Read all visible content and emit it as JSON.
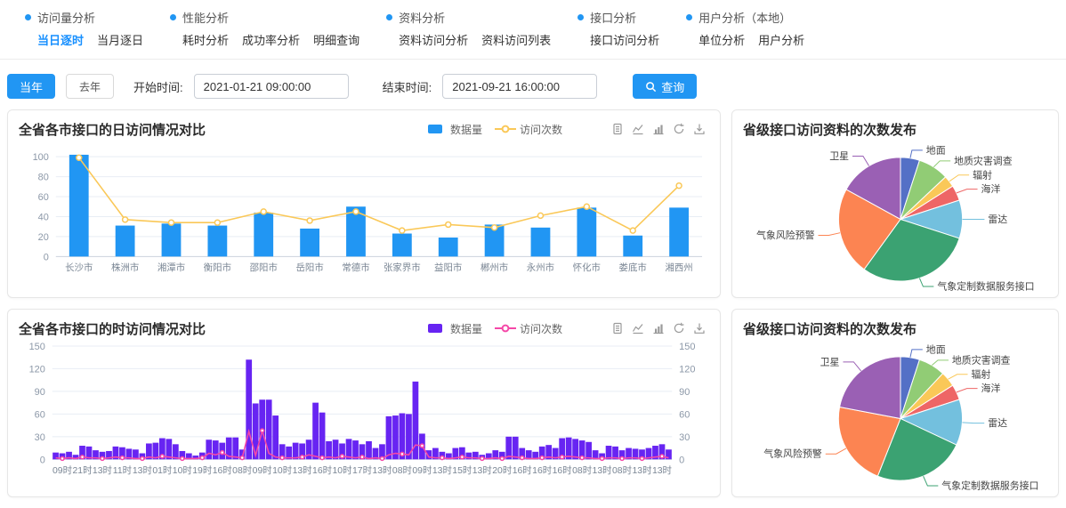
{
  "nav": {
    "bullet_color": "#2196f3",
    "active_color": "#1890ff",
    "groups": [
      {
        "title": "访问量分析",
        "items": [
          {
            "label": "当日逐时",
            "active": true
          },
          {
            "label": "当月逐日",
            "active": false
          }
        ]
      },
      {
        "title": "性能分析",
        "items": [
          {
            "label": "耗时分析",
            "active": false
          },
          {
            "label": "成功率分析",
            "active": false
          },
          {
            "label": "明细查询",
            "active": false
          }
        ]
      },
      {
        "title": "资料分析",
        "items": [
          {
            "label": "资料访问分析",
            "active": false
          },
          {
            "label": "资料访问列表",
            "active": false
          }
        ]
      },
      {
        "title": "接口分析",
        "items": [
          {
            "label": "接口访问分析",
            "active": false
          }
        ]
      },
      {
        "title": "用户分析（本地）",
        "items": [
          {
            "label": "单位分析",
            "active": false
          },
          {
            "label": "用户分析",
            "active": false
          }
        ]
      }
    ]
  },
  "filters": {
    "this_year_label": "当年",
    "last_year_label": "去年",
    "start_label": "开始时间:",
    "start_value": "2021-01-21 09:00:00",
    "end_label": "结束时间:",
    "end_value": "2021-09-21 16:00:00",
    "search_label": "查询",
    "search_icon": "search-icon",
    "accent_color": "#2196f3"
  },
  "toolbox_icons": [
    "data-view-icon",
    "line-chart-icon",
    "bar-chart-icon",
    "restore-icon",
    "download-icon"
  ],
  "chart_data": [
    {
      "type": "bar",
      "title": "全省各市接口的日访问情况对比",
      "legend_position": "top-right",
      "grid": true,
      "categories": [
        "长沙市",
        "株洲市",
        "湘潭市",
        "衡阳市",
        "邵阳市",
        "岳阳市",
        "常德市",
        "张家界市",
        "益阳市",
        "郴州市",
        "永州市",
        "怀化市",
        "娄底市",
        "湘西州"
      ],
      "series": [
        {
          "name": "数据量",
          "type": "bar",
          "color": "#2196f3",
          "values": [
            102,
            31,
            33,
            31,
            44,
            28,
            50,
            23,
            19,
            32,
            29,
            49,
            21,
            49
          ]
        },
        {
          "name": "访问次数",
          "type": "line",
          "color": "#fac858",
          "values": [
            99,
            37,
            34,
            34,
            45,
            36,
            45,
            26,
            32,
            29,
            41,
            50,
            26,
            71
          ]
        }
      ],
      "xlabel": "",
      "ylabel": "",
      "ylim": [
        0,
        110
      ],
      "yticks": [
        0,
        20,
        40,
        60,
        80,
        100
      ]
    },
    {
      "type": "bar",
      "title": "全省各市接口的时访问情况对比",
      "legend_position": "top-right",
      "grid": true,
      "dual_axis": true,
      "categories": [
        "09时",
        "21时",
        "13时",
        "11时",
        "13时",
        "01时",
        "10时",
        "19时",
        "16时",
        "08时",
        "09时",
        "10时",
        "13时",
        "16时",
        "10时",
        "17时",
        "13时",
        "08时",
        "09时",
        "13时",
        "15时",
        "13时",
        "20时",
        "16时",
        "16时",
        "16时",
        "08时",
        "13时",
        "08时",
        "13时",
        "13时"
      ],
      "label_every": 3,
      "series": [
        {
          "name": "数据量",
          "type": "bar",
          "color": "#6724f2",
          "values": [
            9,
            8,
            10,
            6,
            18,
            17,
            12,
            10,
            11,
            17,
            16,
            14,
            13,
            8,
            21,
            22,
            28,
            27,
            20,
            11,
            8,
            5,
            9,
            26,
            25,
            22,
            29,
            29,
            13,
            132,
            74,
            79,
            79,
            58,
            20,
            17,
            22,
            21,
            26,
            75,
            62,
            24,
            26,
            21,
            27,
            25,
            20,
            24,
            15,
            20,
            57,
            58,
            61,
            60,
            103,
            34,
            12,
            15,
            10,
            8,
            15,
            16,
            9,
            10,
            6,
            8,
            12,
            10,
            30,
            30,
            15,
            12,
            10,
            17,
            19,
            15,
            28,
            29,
            27,
            25,
            23,
            12,
            8,
            18,
            17,
            12,
            15,
            14,
            13,
            15,
            18,
            20,
            13
          ]
        },
        {
          "name": "访问次数",
          "type": "line",
          "color": "#f548a8",
          "values": [
            2,
            1,
            2,
            1,
            3,
            2,
            2,
            1,
            2,
            3,
            2,
            2,
            1,
            1,
            3,
            2,
            4,
            3,
            2,
            1,
            1,
            1,
            2,
            8,
            6,
            9,
            4,
            3,
            2,
            37,
            5,
            38,
            8,
            3,
            2,
            2,
            2,
            3,
            6,
            4,
            2,
            3,
            2,
            4,
            3,
            2,
            3,
            1,
            2,
            1,
            6,
            8,
            7,
            6,
            19,
            18,
            3,
            2,
            2,
            1,
            2,
            3,
            2,
            2,
            1,
            1,
            2,
            1,
            4,
            3,
            2,
            1,
            1,
            2,
            3,
            2,
            3,
            4,
            3,
            2,
            2,
            1,
            1,
            2,
            2,
            1,
            2,
            2,
            1,
            2,
            3,
            4,
            2
          ]
        }
      ],
      "xlabel": "",
      "ylabel": "",
      "ylim": [
        0,
        150
      ],
      "yticks": [
        0,
        30,
        60,
        90,
        120,
        150
      ]
    },
    {
      "type": "pie",
      "title": "省级接口访问资料的次数发布",
      "slices": [
        {
          "label": "地面",
          "value": 5,
          "color": "#5470c6"
        },
        {
          "label": "地质灾害调查",
          "value": 8,
          "color": "#91cc75"
        },
        {
          "label": "辐射",
          "value": 3,
          "color": "#fac858"
        },
        {
          "label": "海洋",
          "value": 4,
          "color": "#ee6666"
        },
        {
          "label": "雷达",
          "value": 10,
          "color": "#73c0de"
        },
        {
          "label": "气象定制数据服务接口",
          "value": 30,
          "color": "#3ba272"
        },
        {
          "label": "气象风险预警",
          "value": 23,
          "color": "#fc8452"
        },
        {
          "label": "卫星",
          "value": 17,
          "color": "#9a60b4"
        }
      ]
    },
    {
      "type": "pie",
      "title": "省级接口访问资料的次数发布",
      "slices": [
        {
          "label": "地面",
          "value": 5,
          "color": "#5470c6"
        },
        {
          "label": "地质灾害调查",
          "value": 7,
          "color": "#91cc75"
        },
        {
          "label": "辐射",
          "value": 4,
          "color": "#fac858"
        },
        {
          "label": "海洋",
          "value": 4,
          "color": "#ee6666"
        },
        {
          "label": "雷达",
          "value": 12,
          "color": "#73c0de"
        },
        {
          "label": "气象定制数据服务接口",
          "value": 24,
          "color": "#3ba272"
        },
        {
          "label": "气象风险预警",
          "value": 22,
          "color": "#fc8452"
        },
        {
          "label": "卫星",
          "value": 22,
          "color": "#9a60b4"
        }
      ]
    }
  ]
}
